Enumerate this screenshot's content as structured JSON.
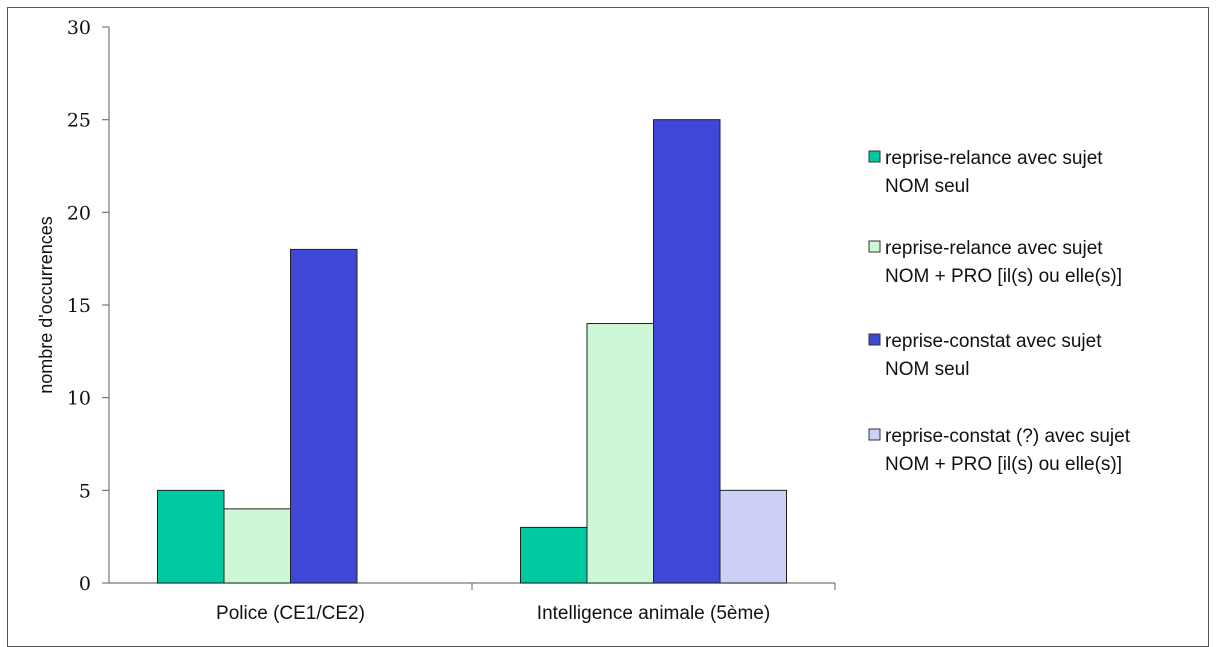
{
  "chart_data": {
    "type": "bar",
    "ylabel": "nombre d'occurrences",
    "xlabel": "",
    "ylim": [
      0,
      30
    ],
    "yticks": [
      0,
      5,
      10,
      15,
      20,
      25,
      30
    ],
    "categories": [
      "Police (CE1/CE2)",
      "Intelligence animale (5ème)"
    ],
    "series": [
      {
        "name": [
          "reprise-relance avec sujet",
          "NOM seul"
        ],
        "color": "#00c8a0",
        "values": [
          5,
          3
        ]
      },
      {
        "name": [
          "reprise-relance avec sujet",
          "NOM + PRO [il(s) ou elle(s)]"
        ],
        "color": "#ccf8d8",
        "values": [
          4,
          14
        ]
      },
      {
        "name": [
          "reprise-constat avec sujet",
          "NOM seul"
        ],
        "color": "#3f48d6",
        "values": [
          18,
          25
        ]
      },
      {
        "name": [
          "reprise-constat (?) avec sujet",
          "NOM + PRO [il(s) ou elle(s)]"
        ],
        "color": "#ccd0f6",
        "values": [
          null,
          5
        ]
      }
    ],
    "grid": false,
    "legend_position": "right"
  }
}
